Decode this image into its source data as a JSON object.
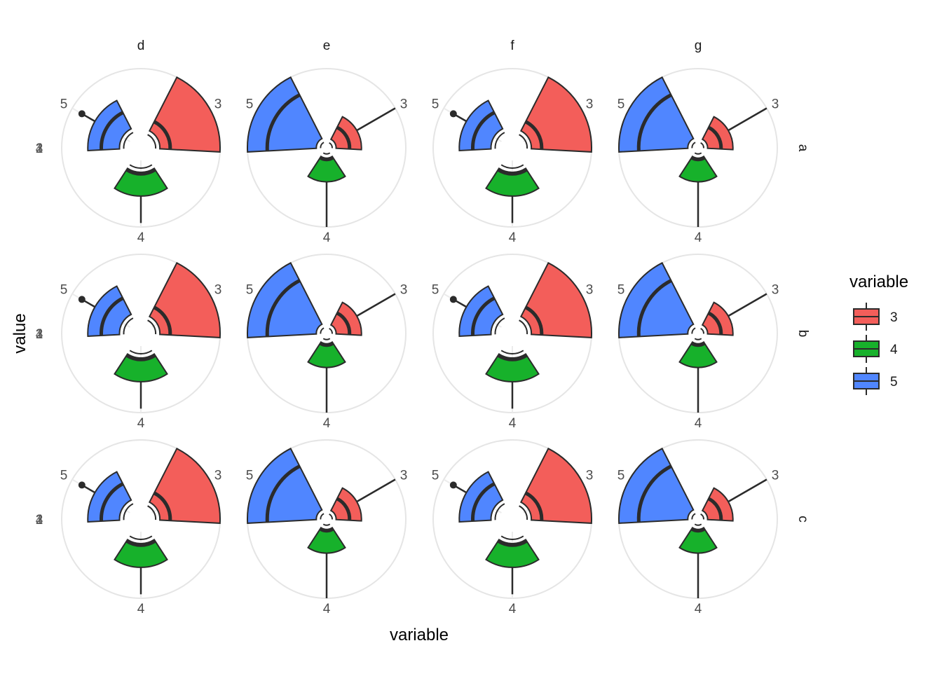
{
  "chart_data": {
    "type": "boxplot-polar",
    "x_title": "variable",
    "y_title": "value",
    "col_facets": [
      "d",
      "e",
      "f",
      "g"
    ],
    "row_facets": [
      "a",
      "b",
      "c"
    ],
    "categories": [
      "3",
      "4",
      "5"
    ],
    "legend": {
      "title": "variable",
      "position": "right",
      "entries": [
        {
          "label": "3",
          "color": "#F35E5A"
        },
        {
          "label": "4",
          "color": "#17B12B"
        },
        {
          "label": "5",
          "color": "#5086FF"
        }
      ]
    },
    "y_tick_labels": [
      "1",
      "2",
      "3",
      "4"
    ],
    "panel_styles": {
      "d": {
        "3": {
          "inner": 0.24,
          "box_low": 0.24,
          "box_high": 1.0,
          "median": 0.37,
          "whisker": 1.0,
          "outlier": null
        },
        "4": {
          "inner": 0.31,
          "box_low": 0.31,
          "box_high": 0.61,
          "median": 0.33,
          "whisker": 0.95,
          "outlier": null
        },
        "5": {
          "inner": 0.27,
          "box_low": 0.27,
          "box_high": 0.67,
          "median": 0.5,
          "whisker": 0.67,
          "outlier": 1.0
        }
      },
      "e": {
        "3": {
          "inner": 0.12,
          "box_low": 0.12,
          "box_high": 0.44,
          "median": 0.29,
          "whisker": 1.0,
          "outlier": null
        },
        "4": {
          "inner": 0.13,
          "box_low": 0.13,
          "box_high": 0.43,
          "median": 0.13,
          "whisker": 1.0,
          "outlier": null
        },
        "5": {
          "inner": 0.13,
          "box_low": 0.13,
          "box_high": 1.0,
          "median": 0.75,
          "whisker": 1.0,
          "outlier": null
        }
      },
      "f": {
        "3": {
          "inner": 0.24,
          "box_low": 0.24,
          "box_high": 1.0,
          "median": 0.37,
          "whisker": 1.0,
          "outlier": null
        },
        "4": {
          "inner": 0.31,
          "box_low": 0.31,
          "box_high": 0.61,
          "median": 0.33,
          "whisker": 0.95,
          "outlier": null
        },
        "5": {
          "inner": 0.27,
          "box_low": 0.27,
          "box_high": 0.67,
          "median": 0.5,
          "whisker": 0.67,
          "outlier": 1.0
        }
      },
      "g": {
        "3": {
          "inner": 0.12,
          "box_low": 0.12,
          "box_high": 0.44,
          "median": 0.29,
          "whisker": 1.0,
          "outlier": null
        },
        "4": {
          "inner": 0.13,
          "box_low": 0.13,
          "box_high": 0.43,
          "median": 0.13,
          "whisker": 1.0,
          "outlier": null
        },
        "5": {
          "inner": 0.13,
          "box_low": 0.13,
          "box_high": 1.0,
          "median": 0.75,
          "whisker": 1.0,
          "outlier": null
        }
      }
    },
    "grid": true
  }
}
